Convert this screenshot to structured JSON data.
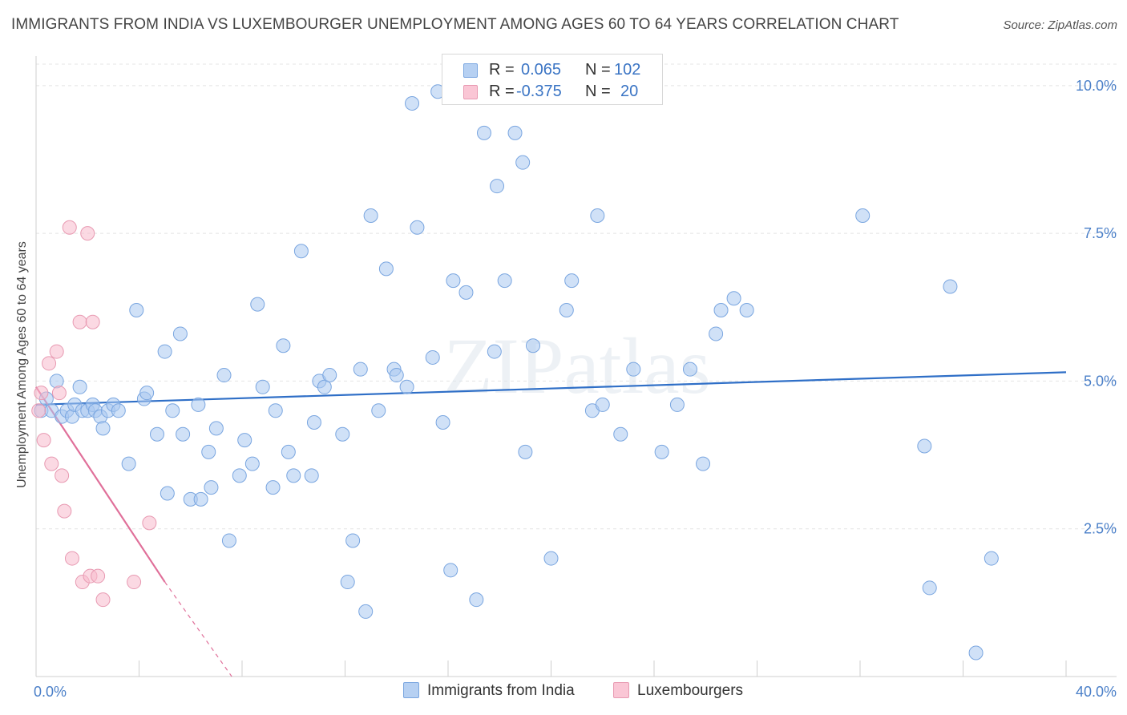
{
  "title": "IMMIGRANTS FROM INDIA VS LUXEMBOURGER UNEMPLOYMENT AMONG AGES 60 TO 64 YEARS CORRELATION CHART",
  "source": "Source: ZipAtlas.com",
  "watermark": "ZIPatlas",
  "legend": {
    "r_label": "R =",
    "n_label": "N =",
    "series": [
      {
        "r": "0.065",
        "n": "102"
      },
      {
        "r": "-0.375",
        "n": "20"
      }
    ]
  },
  "chart_data": {
    "type": "scatter",
    "xlabel": "",
    "ylabel": "Unemployment Among Ages 60 to 64 years",
    "xlim": [
      0,
      40
    ],
    "ylim": [
      0,
      10.5
    ],
    "x_tick_labels": [
      "0.0%",
      "40.0%"
    ],
    "y_ticks": [
      2.5,
      5.0,
      7.5,
      10.0
    ],
    "y_tick_labels": [
      "2.5%",
      "5.0%",
      "7.5%",
      "10.0%"
    ],
    "grid": true,
    "legend_position": "top-center",
    "series": [
      {
        "name": "Immigrants from India",
        "color": "#a9c8f0",
        "edge_color": "#7aa6e0",
        "trend_color": "#2f6fc7",
        "trend": {
          "x": [
            0,
            40
          ],
          "y": [
            4.6,
            5.15
          ]
        },
        "points": [
          [
            0.2,
            4.5
          ],
          [
            0.4,
            4.7
          ],
          [
            0.6,
            4.5
          ],
          [
            0.8,
            5.0
          ],
          [
            1.0,
            4.4
          ],
          [
            1.2,
            4.5
          ],
          [
            1.4,
            4.4
          ],
          [
            1.5,
            4.6
          ],
          [
            1.7,
            4.9
          ],
          [
            1.8,
            4.5
          ],
          [
            2.0,
            4.5
          ],
          [
            2.2,
            4.6
          ],
          [
            2.3,
            4.5
          ],
          [
            2.5,
            4.4
          ],
          [
            2.6,
            4.2
          ],
          [
            2.8,
            4.5
          ],
          [
            3.0,
            4.6
          ],
          [
            3.2,
            4.5
          ],
          [
            3.6,
            3.6
          ],
          [
            3.9,
            6.2
          ],
          [
            4.2,
            4.7
          ],
          [
            4.3,
            4.8
          ],
          [
            4.7,
            4.1
          ],
          [
            5.0,
            5.5
          ],
          [
            5.1,
            3.1
          ],
          [
            5.3,
            4.5
          ],
          [
            5.6,
            5.8
          ],
          [
            5.7,
            4.1
          ],
          [
            6.0,
            3.0
          ],
          [
            6.3,
            4.6
          ],
          [
            6.4,
            3.0
          ],
          [
            6.7,
            3.8
          ],
          [
            6.8,
            3.2
          ],
          [
            7.0,
            4.2
          ],
          [
            7.3,
            5.1
          ],
          [
            7.5,
            2.3
          ],
          [
            7.9,
            3.4
          ],
          [
            8.1,
            4.0
          ],
          [
            8.4,
            3.6
          ],
          [
            8.6,
            6.3
          ],
          [
            8.8,
            4.9
          ],
          [
            9.2,
            3.2
          ],
          [
            9.3,
            4.5
          ],
          [
            9.6,
            5.6
          ],
          [
            9.8,
            3.8
          ],
          [
            10.0,
            3.4
          ],
          [
            10.3,
            7.2
          ],
          [
            10.7,
            3.4
          ],
          [
            10.8,
            4.3
          ],
          [
            11.0,
            5.0
          ],
          [
            11.2,
            4.9
          ],
          [
            11.4,
            5.1
          ],
          [
            11.9,
            4.1
          ],
          [
            12.1,
            1.6
          ],
          [
            12.3,
            2.3
          ],
          [
            12.6,
            5.2
          ],
          [
            12.8,
            1.1
          ],
          [
            13.0,
            7.8
          ],
          [
            13.3,
            4.5
          ],
          [
            13.6,
            6.9
          ],
          [
            13.9,
            5.2
          ],
          [
            14.0,
            5.1
          ],
          [
            14.4,
            4.9
          ],
          [
            14.6,
            9.7
          ],
          [
            14.8,
            7.6
          ],
          [
            15.4,
            5.4
          ],
          [
            15.6,
            9.9
          ],
          [
            15.8,
            4.3
          ],
          [
            16.1,
            1.8
          ],
          [
            16.2,
            6.7
          ],
          [
            16.7,
            6.5
          ],
          [
            17.1,
            1.3
          ],
          [
            17.4,
            9.2
          ],
          [
            17.8,
            5.5
          ],
          [
            17.9,
            8.3
          ],
          [
            18.2,
            6.7
          ],
          [
            18.6,
            9.2
          ],
          [
            18.9,
            8.7
          ],
          [
            19.0,
            3.8
          ],
          [
            19.3,
            5.6
          ],
          [
            20.0,
            2.0
          ],
          [
            20.6,
            6.2
          ],
          [
            20.8,
            6.7
          ],
          [
            21.6,
            4.5
          ],
          [
            21.8,
            7.8
          ],
          [
            22.0,
            4.6
          ],
          [
            22.7,
            4.1
          ],
          [
            23.2,
            5.2
          ],
          [
            24.3,
            3.8
          ],
          [
            24.9,
            4.6
          ],
          [
            25.4,
            5.2
          ],
          [
            25.9,
            3.6
          ],
          [
            26.4,
            5.8
          ],
          [
            26.6,
            6.2
          ],
          [
            27.1,
            6.4
          ],
          [
            27.6,
            6.2
          ],
          [
            32.1,
            7.8
          ],
          [
            34.5,
            3.9
          ],
          [
            34.7,
            1.5
          ],
          [
            35.5,
            6.6
          ],
          [
            36.5,
            0.4
          ],
          [
            37.1,
            2.0
          ]
        ]
      },
      {
        "name": "Luxembourgers",
        "color": "#f7b9cc",
        "edge_color": "#e89ab2",
        "trend_color": "#e0709a",
        "trend": {
          "x": [
            0,
            5.0
          ],
          "y": [
            4.9,
            1.6
          ]
        },
        "trend_dashed": {
          "x": [
            5.0,
            7.6
          ],
          "y": [
            1.6,
            0.0
          ]
        },
        "points": [
          [
            0.1,
            4.5
          ],
          [
            0.2,
            4.8
          ],
          [
            0.3,
            4.0
          ],
          [
            0.5,
            5.3
          ],
          [
            0.6,
            3.6
          ],
          [
            0.8,
            5.5
          ],
          [
            0.9,
            4.8
          ],
          [
            1.0,
            3.4
          ],
          [
            1.1,
            2.8
          ],
          [
            1.3,
            7.6
          ],
          [
            1.4,
            2.0
          ],
          [
            1.7,
            6.0
          ],
          [
            1.8,
            1.6
          ],
          [
            2.0,
            7.5
          ],
          [
            2.1,
            1.7
          ],
          [
            2.2,
            6.0
          ],
          [
            2.4,
            1.7
          ],
          [
            2.6,
            1.3
          ],
          [
            3.8,
            1.6
          ],
          [
            4.4,
            2.6
          ]
        ]
      }
    ]
  }
}
